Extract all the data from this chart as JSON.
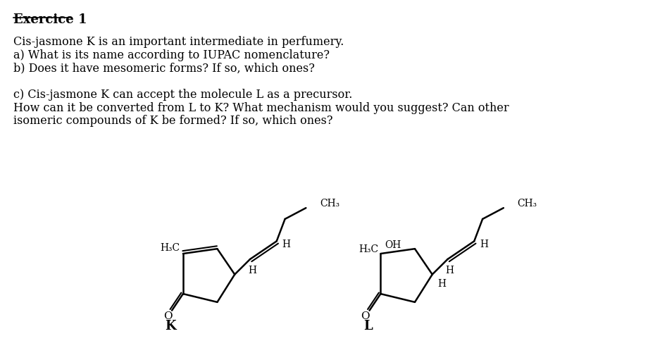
{
  "title": "Exercice 1",
  "background_color": "#ffffff",
  "text_color": "#000000",
  "lines": [
    "Cis-jasmone K is an important intermediate in perfumery.",
    "a) What is its name according to IUPAC nomenclature?",
    "b) Does it have mesomeric forms? If so, which ones?",
    "",
    "c) Cis-jasmone K can accept the molecule L as a precursor.",
    "How can it be converted from L to K? What mechanism would you suggest? Can other",
    "isomeric compounds of K be formed? If so, which ones?"
  ],
  "label_K": "K",
  "label_L": "L",
  "figsize": [
    9.47,
    4.94
  ],
  "dpi": 100
}
